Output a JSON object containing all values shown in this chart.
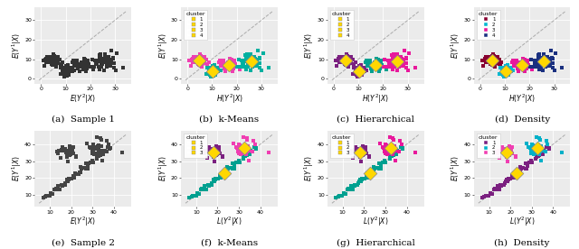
{
  "fig_width": 6.4,
  "fig_height": 2.76,
  "subplot_labels": [
    "(a)  Sample 1",
    "(b)  k-Means",
    "(c)  Hierarchical",
    "(d)  Density",
    "(e)  Sample 2",
    "(f)  k-Means",
    "(g)  Hierarchical",
    "(h)  Density"
  ],
  "caption_fontsize": 7.5,
  "label_fontsize": 5.5,
  "tick_fontsize": 4.5,
  "legend_fontsize": 4.0,
  "legend_title_fontsize": 4.5,
  "panel_bg": "#ebebeb",
  "grid_color": "#ffffff",
  "row1_sample_color": "#333333",
  "row2_sample_color": "#444444",
  "kmeans1_colors": [
    "#f03eb2",
    "#00b0a0",
    "#f03eb2",
    "#00b0a0"
  ],
  "hier1_colors": [
    "#7b2080",
    "#7b2080",
    "#00a090",
    "#e8189c"
  ],
  "dens1_colors": [
    "#880030",
    "#00b8d0",
    "#e8189c",
    "#1a3080"
  ],
  "kmeans2_colors": [
    "#00a090",
    "#f03eb2",
    "#7b2080"
  ],
  "hier2_colors": [
    "#00a090",
    "#e8189c",
    "#7b2080"
  ],
  "dens2_colors": [
    "#7b2080",
    "#00b0c8",
    "#f03eb2"
  ],
  "centroid_color": "#ffd700",
  "centroid_edge": "#888888"
}
